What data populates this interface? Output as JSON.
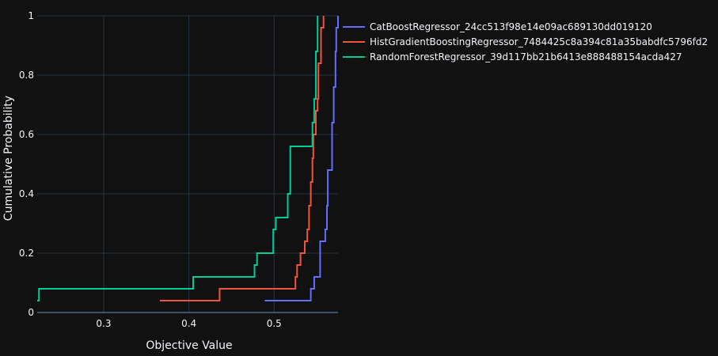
{
  "chart_data": {
    "type": "line",
    "line_shape": "step",
    "xlabel": "Objective Value",
    "ylabel": "Cumulative Probability",
    "xlim": [
      0.222,
      0.575
    ],
    "ylim": [
      0,
      1
    ],
    "x_ticks": [
      0.3,
      0.4,
      0.5
    ],
    "x_tick_labels": [
      "0.3",
      "0.4",
      "0.5"
    ],
    "y_ticks": [
      0,
      0.2,
      0.4,
      0.6,
      0.8,
      1
    ],
    "y_tick_labels": [
      "0",
      "0.2",
      "0.4",
      "0.6",
      "0.8",
      "1"
    ],
    "grid": true,
    "legend_position": "top-right, outside plot",
    "series": [
      {
        "name": "CatBoostRegressor_24cc513f98e14e09ac689130dd019120",
        "color": "#636efa",
        "x": [
          0.489,
          0.543,
          0.544,
          0.547,
          0.554,
          0.556,
          0.56,
          0.562,
          0.563,
          0.566,
          0.568,
          0.57,
          0.572,
          0.573,
          0.575
        ],
        "y": [
          0.04,
          0.08,
          0.08,
          0.12,
          0.24,
          0.24,
          0.28,
          0.36,
          0.48,
          0.48,
          0.64,
          0.76,
          0.88,
          0.96,
          1.0
        ]
      },
      {
        "name": "HistGradientBoostingRegressor_7484425c8a394c81a35babdfc5796fd2",
        "color": "#ef553b",
        "x": [
          0.366,
          0.436,
          0.525,
          0.527,
          0.531,
          0.536,
          0.539,
          0.541,
          0.543,
          0.545,
          0.546,
          0.549,
          0.551,
          0.552,
          0.555,
          0.558
        ],
        "y": [
          0.04,
          0.08,
          0.12,
          0.16,
          0.2,
          0.24,
          0.28,
          0.36,
          0.44,
          0.52,
          0.6,
          0.68,
          0.72,
          0.84,
          0.96,
          1.0
        ]
      },
      {
        "name": "RandomForestRegressor_39d117bb21b6413e888488154acda427",
        "color": "#00cc96",
        "x": [
          0.222,
          0.224,
          0.401,
          0.405,
          0.477,
          0.48,
          0.499,
          0.502,
          0.516,
          0.519,
          0.525,
          0.545,
          0.547,
          0.549,
          0.551
        ],
        "y": [
          0.04,
          0.08,
          0.08,
          0.12,
          0.16,
          0.2,
          0.28,
          0.32,
          0.4,
          0.56,
          0.56,
          0.64,
          0.72,
          0.88,
          1.0
        ]
      }
    ]
  }
}
